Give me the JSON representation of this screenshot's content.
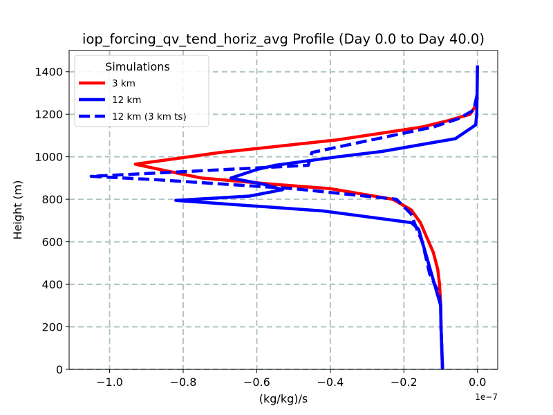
{
  "chart_data": {
    "type": "line",
    "orientation": "profile",
    "title": "iop_forcing_qv_tend_horiz_avg Profile (Day 0.0 to Day 40.0)",
    "xlabel": "(kg/kg)/s",
    "ylabel": "Height (m)",
    "x_offset_text": "1e−7",
    "x_scale": 1e-07,
    "xlim": [
      -1.11,
      0.055
    ],
    "ylim": [
      0,
      1500
    ],
    "xticks": [
      -1.0,
      -0.8,
      -0.6,
      -0.4,
      -0.2,
      0.0
    ],
    "xtick_labels": [
      "−1.0",
      "−0.8",
      "−0.6",
      "−0.4",
      "−0.2",
      "0.0"
    ],
    "yticks": [
      0,
      200,
      400,
      600,
      800,
      1000,
      1200,
      1400
    ],
    "ytick_labels": [
      "0",
      "200",
      "400",
      "600",
      "800",
      "1000",
      "1200",
      "1400"
    ],
    "grid": true,
    "legend": {
      "title": "Simulations",
      "position": "upper-left"
    },
    "series": [
      {
        "name": "3 km",
        "color": "#ff0000",
        "dash": "solid",
        "points": [
          [
            -0.095,
            0
          ],
          [
            -0.097,
            100
          ],
          [
            -0.099,
            200
          ],
          [
            -0.1,
            300
          ],
          [
            -0.103,
            400
          ],
          [
            -0.108,
            470
          ],
          [
            -0.12,
            550
          ],
          [
            -0.14,
            630
          ],
          [
            -0.155,
            690
          ],
          [
            -0.18,
            750
          ],
          [
            -0.23,
            800
          ],
          [
            -0.4,
            850
          ],
          [
            -0.55,
            870
          ],
          [
            -0.75,
            900
          ],
          [
            -0.85,
            935
          ],
          [
            -0.93,
            965
          ],
          [
            -0.7,
            1020
          ],
          [
            -0.38,
            1080
          ],
          [
            -0.15,
            1140
          ],
          [
            -0.08,
            1170
          ],
          [
            -0.02,
            1200
          ],
          [
            -0.005,
            1240
          ],
          [
            0.0,
            1280
          ]
        ]
      },
      {
        "name": "12 km",
        "color": "#0000ff",
        "dash": "solid",
        "points": [
          [
            -0.095,
            0
          ],
          [
            -0.097,
            100
          ],
          [
            -0.099,
            200
          ],
          [
            -0.1,
            300
          ],
          [
            -0.11,
            360
          ],
          [
            -0.125,
            450
          ],
          [
            -0.15,
            600
          ],
          [
            -0.16,
            660
          ],
          [
            -0.18,
            690
          ],
          [
            -0.42,
            745
          ],
          [
            -0.82,
            795
          ],
          [
            -0.62,
            815
          ],
          [
            -0.53,
            845
          ],
          [
            -0.58,
            870
          ],
          [
            -0.67,
            900
          ],
          [
            -0.6,
            940
          ],
          [
            -0.55,
            960
          ],
          [
            -0.38,
            1000
          ],
          [
            -0.26,
            1025
          ],
          [
            -0.06,
            1085
          ],
          [
            -0.005,
            1150
          ],
          [
            -0.002,
            1200
          ],
          [
            -0.001,
            1300
          ],
          [
            0.0,
            1430
          ]
        ]
      },
      {
        "name": "12 km (3 km ts)",
        "color": "#0000ff",
        "dash": "dashed",
        "points": [
          [
            -0.095,
            0
          ],
          [
            -0.097,
            100
          ],
          [
            -0.099,
            200
          ],
          [
            -0.1,
            300
          ],
          [
            -0.105,
            360
          ],
          [
            -0.13,
            450
          ],
          [
            -0.15,
            600
          ],
          [
            -0.165,
            660
          ],
          [
            -0.18,
            730
          ],
          [
            -0.22,
            800
          ],
          [
            -0.5,
            850
          ],
          [
            -0.72,
            875
          ],
          [
            -0.88,
            893
          ],
          [
            -1.05,
            908
          ],
          [
            -0.8,
            930
          ],
          [
            -0.63,
            945
          ],
          [
            -0.46,
            960
          ],
          [
            -0.45,
            1020
          ],
          [
            -0.3,
            1075
          ],
          [
            -0.12,
            1140
          ],
          [
            -0.05,
            1180
          ],
          [
            -0.01,
            1220
          ],
          [
            0.0,
            1300
          ]
        ]
      }
    ]
  }
}
